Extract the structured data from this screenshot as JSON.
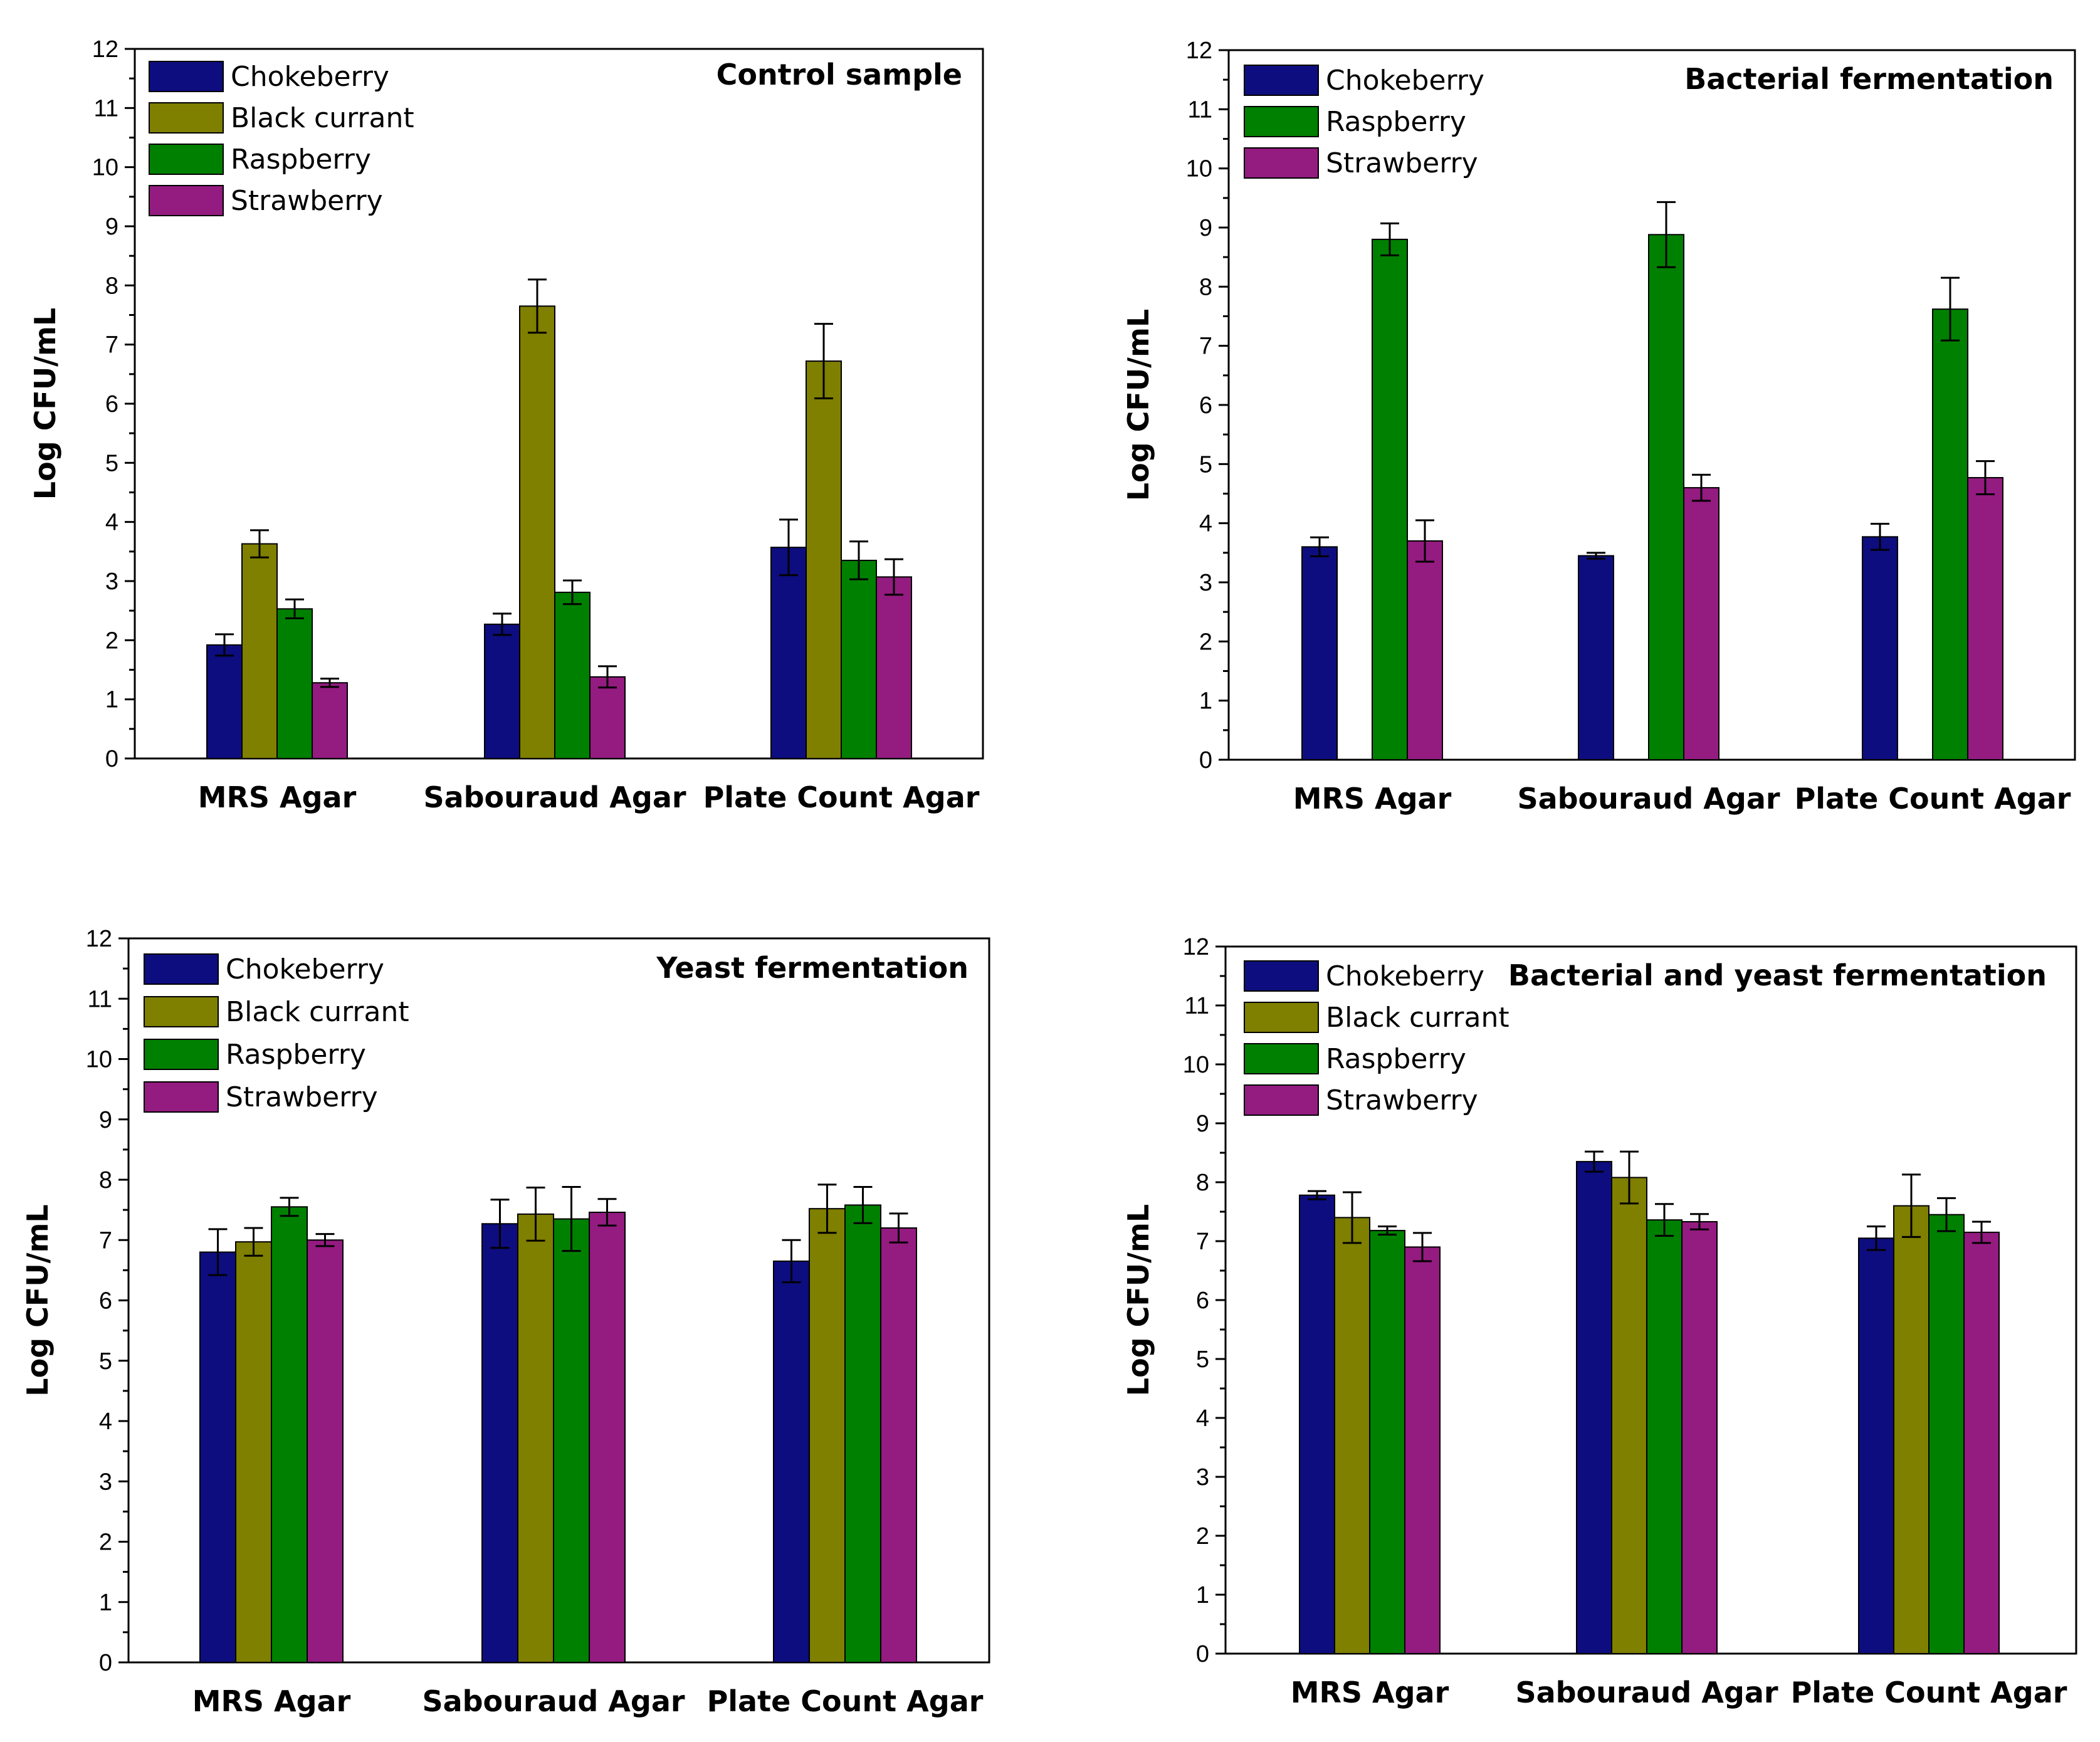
{
  "colors": {
    "Chokeberry": "#0d0d7f",
    "Black currant": "#7f7f00",
    "Raspberry": "#008000",
    "Strawberry": "#941b80"
  },
  "chart_data": [
    {
      "type": "bar",
      "title": "Control sample",
      "ylabel": "Log CFU/mL",
      "ylim": [
        0,
        12
      ],
      "yticks": [
        "0",
        "1",
        "2",
        "3",
        "4",
        "5",
        "6",
        "7",
        "8",
        "9",
        "10",
        "11",
        "12"
      ],
      "categories": [
        "MRS Agar",
        "Sabouraud Agar",
        "Plate Count Agar"
      ],
      "legend_position": "top-left",
      "series": [
        {
          "name": "Chokeberry",
          "values": [
            1.92,
            2.27,
            3.57
          ],
          "errors": [
            0.18,
            0.18,
            0.47
          ]
        },
        {
          "name": "Black currant",
          "values": [
            3.63,
            7.65,
            6.72
          ],
          "errors": [
            0.23,
            0.45,
            0.63
          ]
        },
        {
          "name": "Raspberry",
          "values": [
            2.53,
            2.81,
            3.35
          ],
          "errors": [
            0.16,
            0.2,
            0.32
          ]
        },
        {
          "name": "Strawberry",
          "values": [
            1.28,
            1.38,
            3.07
          ],
          "errors": [
            0.07,
            0.18,
            0.3
          ]
        }
      ]
    },
    {
      "type": "bar",
      "title": "Bacterial fermentation",
      "ylabel": "Log CFU/mL",
      "ylim": [
        0,
        12
      ],
      "yticks": [
        "0",
        "1",
        "2",
        "3",
        "4",
        "5",
        "6",
        "7",
        "8",
        "9",
        "10",
        "11",
        "12"
      ],
      "categories": [
        "MRS Agar",
        "Sabouraud Agar",
        "Plate Count Agar"
      ],
      "legend_position": "top-left",
      "series": [
        {
          "name": "Chokeberry",
          "values": [
            3.6,
            3.45,
            3.77
          ],
          "errors": [
            0.16,
            0.05,
            0.22
          ]
        },
        {
          "name": "Black currant",
          "values": [
            0,
            0,
            0
          ],
          "errors": [
            0,
            0,
            0
          ],
          "in_legend": false
        },
        {
          "name": "Raspberry",
          "values": [
            8.8,
            8.88,
            7.62
          ],
          "errors": [
            0.27,
            0.55,
            0.53
          ]
        },
        {
          "name": "Strawberry",
          "values": [
            3.7,
            4.6,
            4.77
          ],
          "errors": [
            0.35,
            0.22,
            0.28
          ]
        }
      ]
    },
    {
      "type": "bar",
      "title": "Yeast fermentation",
      "ylabel": "Log CFU/mL",
      "ylim": [
        0,
        12
      ],
      "yticks": [
        "0",
        "1",
        "2",
        "3",
        "4",
        "5",
        "6",
        "7",
        "8",
        "9",
        "10",
        "11",
        "12"
      ],
      "categories": [
        "MRS Agar",
        "Sabouraud Agar",
        "Plate Count Agar"
      ],
      "legend_position": "top-left",
      "series": [
        {
          "name": "Chokeberry",
          "values": [
            6.8,
            7.27,
            6.65
          ],
          "errors": [
            0.38,
            0.4,
            0.35
          ]
        },
        {
          "name": "Black currant",
          "values": [
            6.97,
            7.43,
            7.52
          ],
          "errors": [
            0.23,
            0.44,
            0.4
          ]
        },
        {
          "name": "Raspberry",
          "values": [
            7.55,
            7.35,
            7.58
          ],
          "errors": [
            0.15,
            0.53,
            0.3
          ]
        },
        {
          "name": "Strawberry",
          "values": [
            7.0,
            7.46,
            7.2
          ],
          "errors": [
            0.1,
            0.22,
            0.24
          ]
        }
      ]
    },
    {
      "type": "bar",
      "title": "Bacterial and yeast fermentation",
      "ylabel": "Log CFU/mL",
      "ylim": [
        0,
        12
      ],
      "yticks": [
        "0",
        "1",
        "2",
        "3",
        "4",
        "5",
        "6",
        "7",
        "8",
        "9",
        "10",
        "11",
        "12"
      ],
      "categories": [
        "MRS Agar",
        "Sabouraud Agar",
        "Plate Count Agar"
      ],
      "legend_position": "top-left",
      "series": [
        {
          "name": "Chokeberry",
          "values": [
            7.78,
            8.35,
            7.05
          ],
          "errors": [
            0.07,
            0.17,
            0.2
          ]
        },
        {
          "name": "Black currant",
          "values": [
            7.4,
            8.08,
            7.6
          ],
          "errors": [
            0.43,
            0.44,
            0.53
          ]
        },
        {
          "name": "Raspberry",
          "values": [
            7.18,
            7.36,
            7.45
          ],
          "errors": [
            0.07,
            0.27,
            0.28
          ]
        },
        {
          "name": "Strawberry",
          "values": [
            6.9,
            7.33,
            7.15
          ],
          "errors": [
            0.24,
            0.13,
            0.18
          ]
        }
      ]
    }
  ]
}
